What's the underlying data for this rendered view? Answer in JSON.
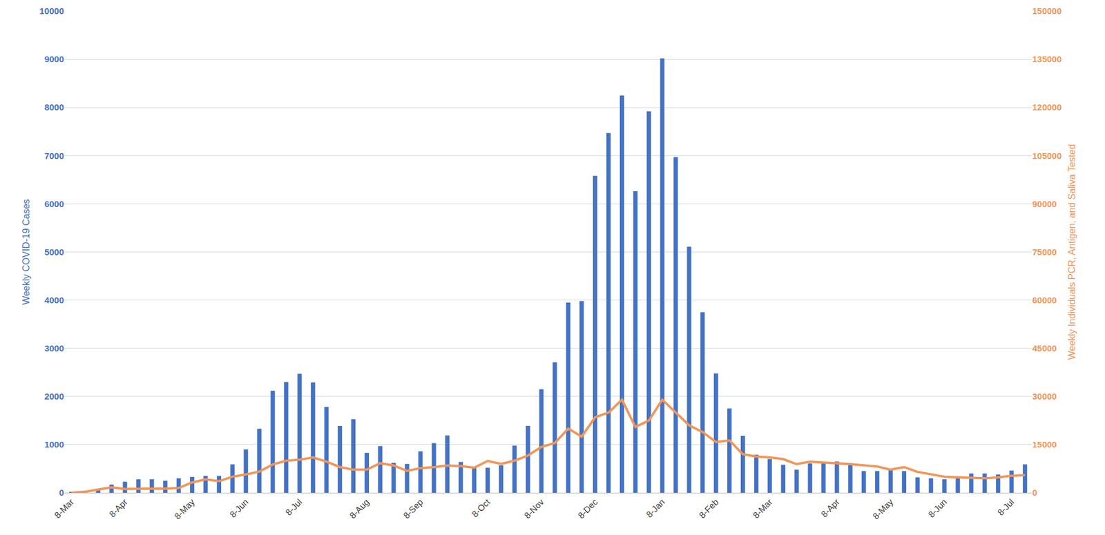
{
  "chart_data": {
    "type": "bar",
    "y_label": "Weekly COVID-19 Cases",
    "y2_label": "Weekly Individuals PCR, Antigen, and Saliva Tested",
    "categories": [
      "8-Mar",
      null,
      null,
      null,
      "8-Apr",
      null,
      null,
      null,
      null,
      "8-May",
      null,
      null,
      null,
      "8-Jun",
      null,
      null,
      null,
      "8-Jul",
      null,
      null,
      null,
      null,
      "8-Aug",
      null,
      null,
      null,
      "8-Sep",
      null,
      null,
      null,
      null,
      "8-Oct",
      null,
      null,
      null,
      "8-Nov",
      null,
      null,
      null,
      "8-Dec",
      null,
      null,
      null,
      null,
      "8-Jan",
      null,
      null,
      null,
      "8-Feb",
      null,
      null,
      null,
      "8-Mar",
      null,
      null,
      null,
      null,
      "8-Apr",
      null,
      null,
      null,
      "8-May",
      null,
      null,
      null,
      "8-Jun",
      null,
      null,
      null,
      null,
      "8-Jul",
      null
    ],
    "series": [
      {
        "type": "bar",
        "color": "#4472c4",
        "values": [
          20,
          10,
          70,
          170,
          230,
          280,
          280,
          250,
          300,
          330,
          350,
          350,
          590,
          900,
          1330,
          2120,
          2300,
          2470,
          2290,
          1780,
          1390,
          1530,
          830,
          970,
          620,
          600,
          860,
          1030,
          1190,
          640,
          530,
          520,
          570,
          980,
          1390,
          2150,
          2710,
          3950,
          3980,
          6580,
          7470,
          8250,
          6260,
          7920,
          9020,
          6970,
          5110,
          3750,
          2480,
          1750,
          1180,
          790,
          700,
          580,
          480,
          610,
          630,
          650,
          600,
          450,
          450,
          490,
          450,
          320,
          300,
          280,
          340,
          400,
          400,
          380,
          460,
          590
        ]
      },
      {
        "type": "line",
        "axis": "y2",
        "color": "#f0965a",
        "values": [
          0,
          300,
          1000,
          1700,
          1200,
          1200,
          1200,
          1300,
          1500,
          3200,
          4200,
          3600,
          5000,
          5700,
          6600,
          8800,
          10000,
          10300,
          11000,
          9700,
          8000,
          7200,
          7200,
          9200,
          8500,
          6800,
          7700,
          8000,
          8500,
          8300,
          7800,
          9900,
          9000,
          10000,
          11600,
          14300,
          15500,
          20000,
          17500,
          23500,
          25000,
          29000,
          20500,
          22500,
          29000,
          25000,
          21000,
          18900,
          15800,
          16300,
          12000,
          11300,
          11000,
          10500,
          8900,
          9700,
          9500,
          9200,
          8900,
          8600,
          8200,
          7200,
          8000,
          6500,
          5700,
          5000,
          4800,
          4700,
          4500,
          4800,
          5300,
          5500
        ]
      }
    ],
    "ylim": [
      0,
      10000
    ],
    "yticks": [
      0,
      1000,
      2000,
      3000,
      4000,
      5000,
      6000,
      7000,
      8000,
      9000,
      10000
    ],
    "y2lim": [
      0,
      150000
    ],
    "y2ticks": [
      0,
      15000,
      30000,
      45000,
      60000,
      75000,
      90000,
      105000,
      120000,
      135000,
      150000
    ],
    "grid": true
  }
}
